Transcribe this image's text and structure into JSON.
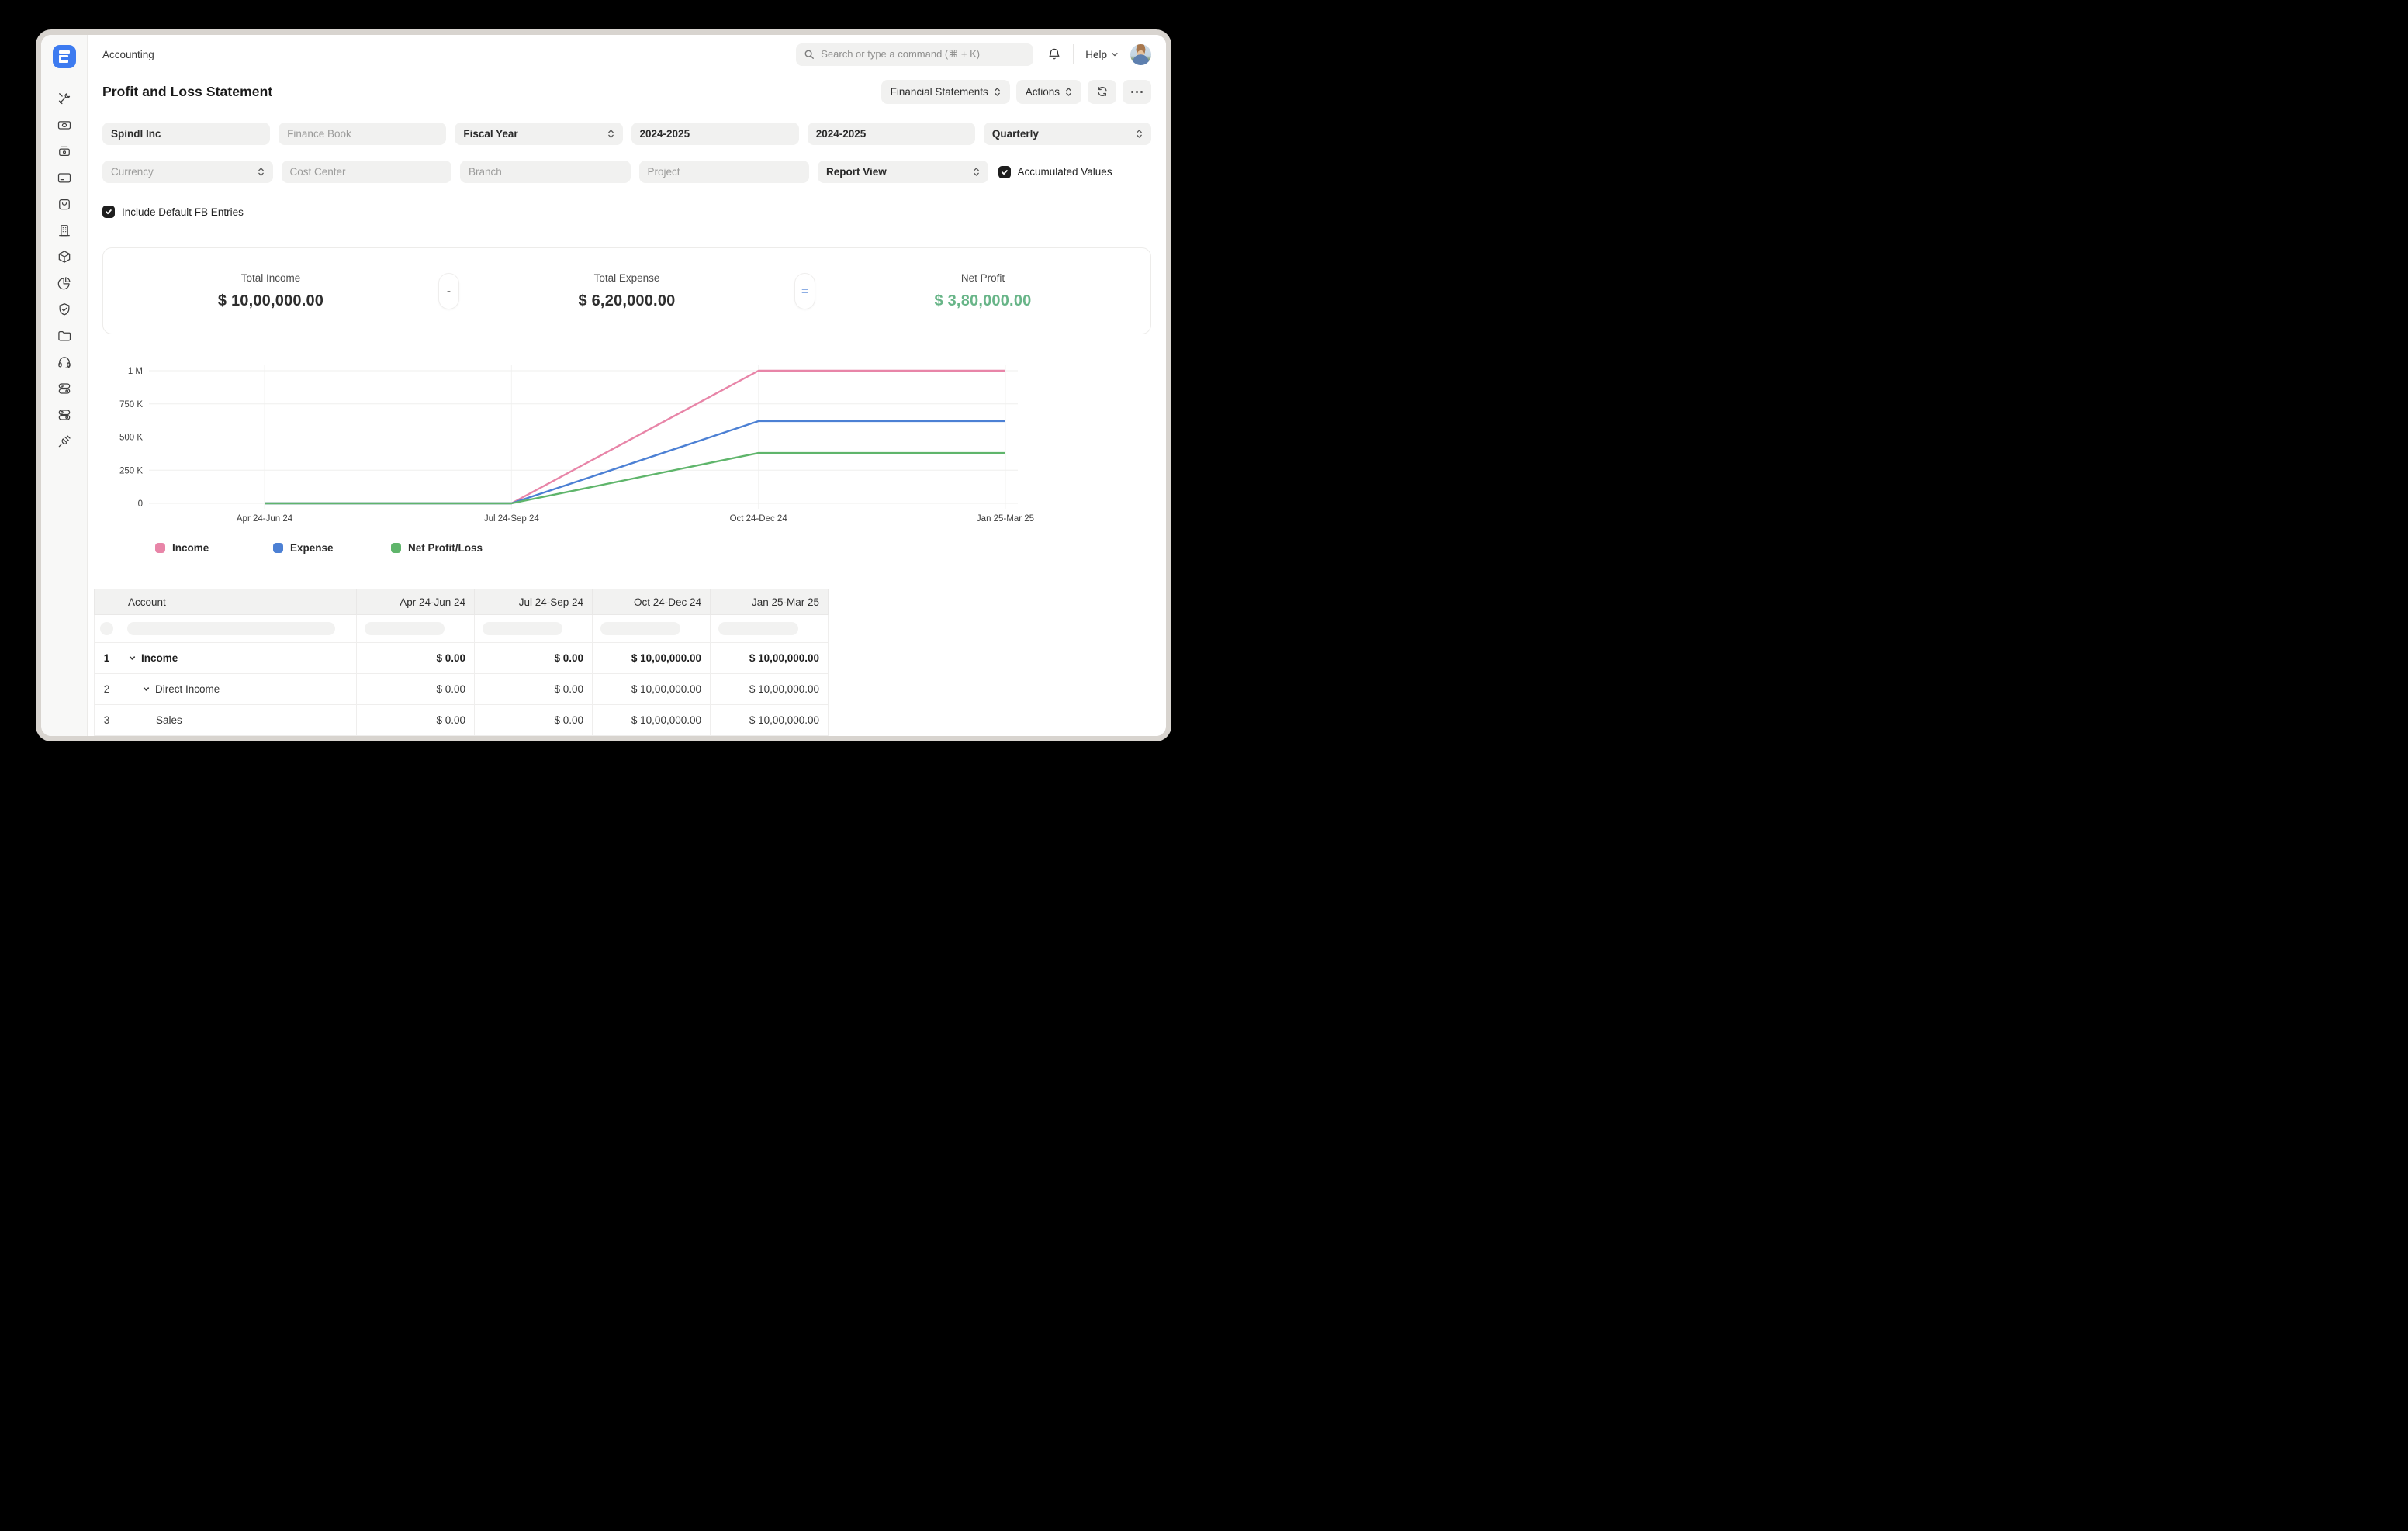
{
  "topbar": {
    "breadcrumb": "Accounting",
    "search_placeholder": "Search or type a command (⌘ + K)",
    "help_label": "Help"
  },
  "page": {
    "title": "Profit and Loss Statement",
    "report_switcher_label": "Financial Statements",
    "actions_label": "Actions"
  },
  "sidebar": {
    "icons": [
      "tools-icon",
      "banknote-icon",
      "cash-register-icon",
      "credit-card-icon",
      "shopping-bag-icon",
      "building-icon",
      "package-icon",
      "pie-chart-icon",
      "shield-check-icon",
      "folder-icon",
      "headset-icon",
      "toggles-icon",
      "toggles-icon",
      "plug-icon"
    ]
  },
  "filters": {
    "row1": [
      {
        "label": "Spindl Inc",
        "filled": true,
        "select": false,
        "name": "company-filter"
      },
      {
        "label": "Finance Book",
        "filled": false,
        "select": false,
        "name": "finance-book-filter"
      },
      {
        "label": "Fiscal Year",
        "filled": true,
        "select": true,
        "name": "period-basis-filter"
      },
      {
        "label": "2024-2025",
        "filled": true,
        "select": false,
        "name": "from-fiscal-year-filter"
      },
      {
        "label": "2024-2025",
        "filled": true,
        "select": false,
        "name": "to-fiscal-year-filter"
      },
      {
        "label": "Quarterly",
        "filled": true,
        "select": true,
        "name": "periodicity-filter"
      }
    ],
    "row2": [
      {
        "label": "Currency",
        "filled": false,
        "select": true,
        "name": "currency-filter"
      },
      {
        "label": "Cost Center",
        "filled": false,
        "select": false,
        "name": "cost-center-filter"
      },
      {
        "label": "Branch",
        "filled": false,
        "select": false,
        "name": "branch-filter"
      },
      {
        "label": "Project",
        "filled": false,
        "select": false,
        "name": "project-filter"
      },
      {
        "label": "Report View",
        "filled": true,
        "select": true,
        "name": "report-view-filter"
      }
    ],
    "accumulated_values": {
      "label": "Accumulated Values",
      "checked": true
    },
    "include_default_fb": {
      "label": "Include Default FB Entries",
      "checked": true
    }
  },
  "summary": {
    "items": [
      {
        "label": "Total Income",
        "value": "$ 10,00,000.00",
        "color": "#2E2E2E"
      },
      {
        "label": "Total Expense",
        "value": "$ 6,20,000.00",
        "color": "#2E2E2E"
      },
      {
        "label": "Net Profit",
        "value": "$ 3,80,000.00",
        "color": "#68B588"
      }
    ],
    "operators": [
      "-",
      "="
    ]
  },
  "chart_data": {
    "type": "line",
    "x": [
      "Apr 24-Jun 24",
      "Jul 24-Sep 24",
      "Oct 24-Dec 24",
      "Jan 25-Mar 25"
    ],
    "series": [
      {
        "name": "Income",
        "color": "#E885A8",
        "values": [
          0,
          0,
          1000000,
          1000000
        ]
      },
      {
        "name": "Expense",
        "color": "#4C80D4",
        "values": [
          0,
          0,
          620000,
          620000
        ]
      },
      {
        "name": "Net Profit/Loss",
        "color": "#5FB56B",
        "values": [
          0,
          0,
          380000,
          380000
        ]
      }
    ],
    "ylim": [
      0,
      1000000
    ],
    "yticks": [
      {
        "v": 0,
        "label": "0"
      },
      {
        "v": 250000,
        "label": "250 K"
      },
      {
        "v": 500000,
        "label": "500 K"
      },
      {
        "v": 750000,
        "label": "750 K"
      },
      {
        "v": 1000000,
        "label": "1 M"
      }
    ],
    "grid": true,
    "legend_position": "bottom"
  },
  "table": {
    "columns": [
      "Account",
      "Apr 24-Jun 24",
      "Jul 24-Sep 24",
      "Oct 24-Dec 24",
      "Jan 25-Mar 25"
    ],
    "rows": [
      {
        "num": "1",
        "label": "Income",
        "indent": 0,
        "chevron": true,
        "bold": true,
        "values": [
          "$ 0.00",
          "$ 0.00",
          "$ 10,00,000.00",
          "$ 10,00,000.00"
        ]
      },
      {
        "num": "2",
        "label": "Direct Income",
        "indent": 1,
        "chevron": true,
        "bold": false,
        "values": [
          "$ 0.00",
          "$ 0.00",
          "$ 10,00,000.00",
          "$ 10,00,000.00"
        ]
      },
      {
        "num": "3",
        "label": "Sales",
        "indent": 2,
        "chevron": false,
        "bold": false,
        "values": [
          "$ 0.00",
          "$ 0.00",
          "$ 10,00,000.00",
          "$ 10,00,000.00"
        ]
      }
    ]
  },
  "colors": {
    "accent_blue": "#3D7BF0",
    "net_profit_green": "#68B588",
    "equals_blue": "#4C80D4"
  }
}
